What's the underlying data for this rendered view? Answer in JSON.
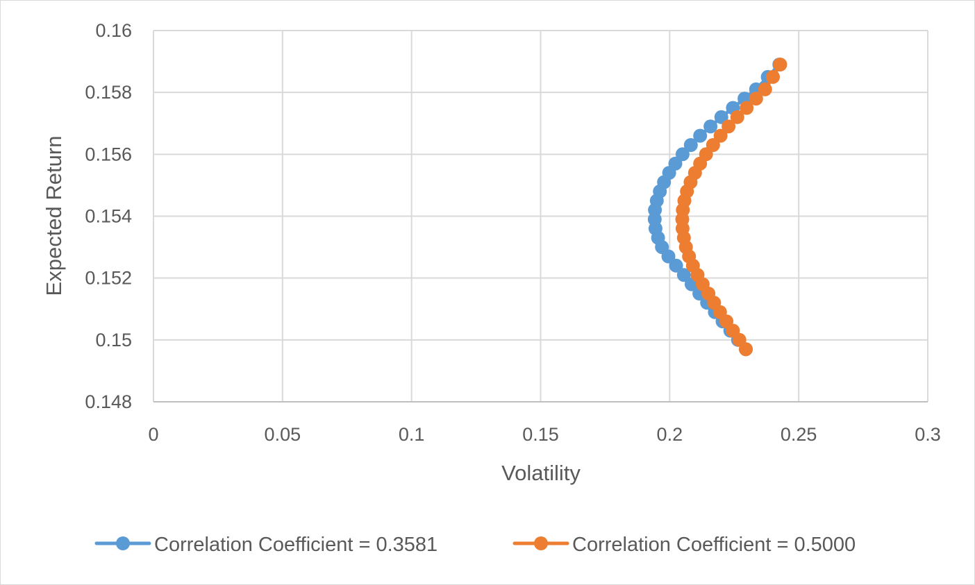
{
  "chart_data": {
    "type": "scatter",
    "title": "",
    "xlabel": "Volatility",
    "ylabel": "Expected Return",
    "xlim": [
      0,
      0.3
    ],
    "ylim": [
      0.148,
      0.16
    ],
    "x_ticks": [
      "0",
      "0.05",
      "0.1",
      "0.15",
      "0.2",
      "0.25",
      "0.3"
    ],
    "y_ticks": [
      "0.148",
      "0.15",
      "0.152",
      "0.154",
      "0.156",
      "0.158",
      "0.16"
    ],
    "grid": true,
    "legend_position": "bottom",
    "series": [
      {
        "name": "Correlation Coefficient = 0.3581",
        "color": "#5b9bd5",
        "marker": "circle",
        "points": [
          [
            0.2295,
            0.1497
          ],
          [
            0.2265,
            0.15
          ],
          [
            0.2235,
            0.1503
          ],
          [
            0.2205,
            0.1506
          ],
          [
            0.2175,
            0.1509
          ],
          [
            0.2145,
            0.1512
          ],
          [
            0.2115,
            0.1515
          ],
          [
            0.2085,
            0.1518
          ],
          [
            0.2055,
            0.1521
          ],
          [
            0.2025,
            0.1524
          ],
          [
            0.1995,
            0.1527
          ],
          [
            0.197,
            0.153
          ],
          [
            0.1955,
            0.1533
          ],
          [
            0.1945,
            0.1536
          ],
          [
            0.1942,
            0.1539
          ],
          [
            0.1943,
            0.1542
          ],
          [
            0.195,
            0.1545
          ],
          [
            0.1962,
            0.1548
          ],
          [
            0.1978,
            0.1551
          ],
          [
            0.1998,
            0.1554
          ],
          [
            0.2022,
            0.1557
          ],
          [
            0.205,
            0.156
          ],
          [
            0.2082,
            0.1563
          ],
          [
            0.2118,
            0.1566
          ],
          [
            0.2158,
            0.1569
          ],
          [
            0.22,
            0.1572
          ],
          [
            0.2245,
            0.1575
          ],
          [
            0.229,
            0.1578
          ],
          [
            0.2335,
            0.1581
          ],
          [
            0.238,
            0.1585
          ],
          [
            0.2425,
            0.1589
          ]
        ]
      },
      {
        "name": "Correlation Coefficient = 0.5000",
        "color": "#ed7d31",
        "marker": "circle",
        "points": [
          [
            0.2295,
            0.1497
          ],
          [
            0.227,
            0.15
          ],
          [
            0.2245,
            0.1503
          ],
          [
            0.222,
            0.1506
          ],
          [
            0.2195,
            0.1509
          ],
          [
            0.2172,
            0.1512
          ],
          [
            0.215,
            0.1515
          ],
          [
            0.2128,
            0.1518
          ],
          [
            0.2108,
            0.1521
          ],
          [
            0.209,
            0.1524
          ],
          [
            0.2075,
            0.1527
          ],
          [
            0.2063,
            0.153
          ],
          [
            0.2055,
            0.1533
          ],
          [
            0.205,
            0.1536
          ],
          [
            0.2049,
            0.1539
          ],
          [
            0.2051,
            0.1542
          ],
          [
            0.2057,
            0.1545
          ],
          [
            0.2067,
            0.1548
          ],
          [
            0.2081,
            0.1551
          ],
          [
            0.2098,
            0.1554
          ],
          [
            0.2118,
            0.1557
          ],
          [
            0.2141,
            0.156
          ],
          [
            0.2168,
            0.1563
          ],
          [
            0.2197,
            0.1566
          ],
          [
            0.2228,
            0.1569
          ],
          [
            0.2262,
            0.1572
          ],
          [
            0.2298,
            0.1575
          ],
          [
            0.2335,
            0.1578
          ],
          [
            0.237,
            0.1581
          ],
          [
            0.24,
            0.1585
          ],
          [
            0.2428,
            0.1589
          ]
        ]
      }
    ]
  }
}
